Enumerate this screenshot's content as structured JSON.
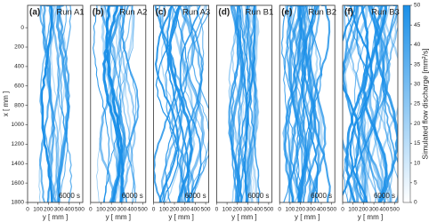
{
  "chart_data": [
    {
      "type": "image",
      "label": "(a)",
      "title": "Run A1",
      "annotation": "6000 s",
      "xlabel": "y [ mm ]",
      "ylabel": "x [ mm ]",
      "xlim": [
        0,
        530
      ],
      "xticks": [
        0,
        100,
        200,
        300,
        400,
        500
      ],
      "ylim": [
        1800,
        -230
      ],
      "yticks": [
        0,
        200,
        400,
        600,
        800,
        1000,
        1200,
        1400,
        1600,
        1800
      ]
    },
    {
      "type": "image",
      "label": "(b)",
      "title": "Run A2",
      "annotation": "6000 s",
      "xlabel": "y [ mm ]",
      "xlim": [
        0,
        530
      ],
      "xticks": [
        0,
        100,
        200,
        300,
        400,
        500
      ]
    },
    {
      "type": "image",
      "label": "(c)",
      "title": "Run A3",
      "annotation": "6000 s",
      "xlabel": "y [ mm ]",
      "xlim": [
        0,
        530
      ],
      "xticks": [
        0,
        100,
        200,
        300,
        400,
        500
      ]
    },
    {
      "type": "image",
      "label": "(d)",
      "title": "Run B1",
      "annotation": "6000 s",
      "xlabel": "y [ mm ]",
      "xlim": [
        0,
        530
      ],
      "xticks": [
        0,
        100,
        200,
        300,
        400,
        500
      ]
    },
    {
      "type": "image",
      "label": "(e)",
      "title": "Run B2",
      "annotation": "6000 s",
      "xlabel": "y [ mm ]",
      "xlim": [
        0,
        530
      ],
      "xticks": [
        0,
        100,
        200,
        300,
        400,
        500
      ]
    },
    {
      "type": "image",
      "label": "(f)",
      "title": "Run B3",
      "annotation": "6000 s",
      "xlabel": "y [ mm ]",
      "xlim": [
        0,
        530
      ],
      "xticks": [
        0,
        100,
        200,
        300,
        400,
        500
      ]
    }
  ],
  "colorbar": {
    "label": "Simulated flow discharge [mm²/s]",
    "lim": [
      0,
      50
    ],
    "ticks": [
      0,
      5,
      10,
      15,
      20,
      25,
      30,
      35,
      40,
      45,
      50
    ],
    "colors": [
      "#ffffff",
      "#1a8fe8"
    ]
  }
}
